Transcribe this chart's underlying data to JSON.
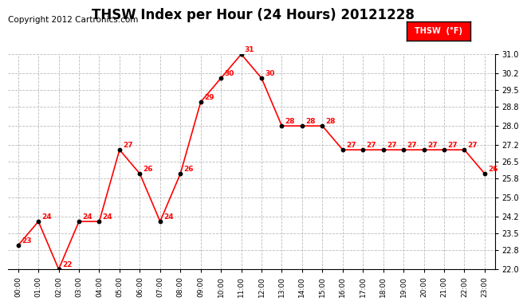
{
  "title": "THSW Index per Hour (24 Hours) 20121228",
  "copyright": "Copyright 2012 Cartronics.com",
  "legend_label": "THSW  (°F)",
  "hours": [
    "00:00",
    "01:00",
    "02:00",
    "03:00",
    "04:00",
    "05:00",
    "06:00",
    "07:00",
    "08:00",
    "09:00",
    "10:00",
    "11:00",
    "12:00",
    "13:00",
    "14:00",
    "15:00",
    "16:00",
    "17:00",
    "18:00",
    "19:00",
    "20:00",
    "21:00",
    "22:00",
    "23:00"
  ],
  "values": [
    23,
    24,
    22,
    24,
    24,
    27,
    26,
    24,
    26,
    29,
    30,
    31,
    30,
    28,
    28,
    28,
    27,
    27,
    27,
    27,
    27,
    27,
    27,
    26
  ],
  "ylim": [
    22.0,
    31.0
  ],
  "yticks": [
    22.0,
    22.8,
    23.5,
    24.2,
    25.0,
    25.8,
    26.5,
    27.2,
    28.0,
    28.8,
    29.5,
    30.2,
    31.0
  ],
  "line_color": "red",
  "marker_color": "black",
  "label_color": "red",
  "bg_color": "white",
  "grid_color": "#bbbbbb",
  "title_fontsize": 12,
  "copyright_fontsize": 7.5,
  "label_fontsize": 6.5
}
